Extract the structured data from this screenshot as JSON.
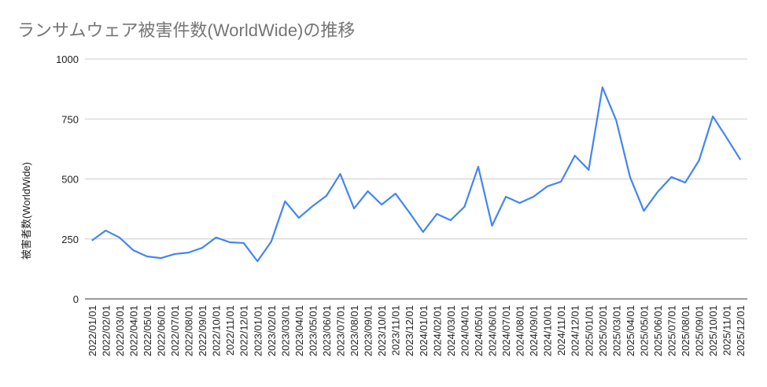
{
  "chart_data": {
    "type": "line",
    "title": "ランサムウェア被害件数(WorldWide)の推移",
    "y_label": "被害者数(WorldWide)",
    "categories": [
      "2022/01/01",
      "2022/02/01",
      "2022/03/01",
      "2022/04/01",
      "2022/05/01",
      "2022/06/01",
      "2022/07/01",
      "2022/08/01",
      "2022/09/01",
      "2022/10/01",
      "2022/11/01",
      "2022/12/01",
      "2023/01/01",
      "2023/02/01",
      "2023/03/01",
      "2023/04/01",
      "2023/05/01",
      "2023/06/01",
      "2023/07/01",
      "2023/08/01",
      "2023/09/01",
      "2023/10/01",
      "2023/11/01",
      "2023/12/01",
      "2024/01/01",
      "2024/02/01",
      "2024/03/01",
      "2024/04/01",
      "2024/05/01",
      "2024/06/01",
      "2024/07/01",
      "2024/08/01",
      "2024/09/01",
      "2024/10/01",
      "2024/11/01",
      "2024/12/01",
      "2025/01/01",
      "2025/02/01",
      "2025/03/01",
      "2025/04/01",
      "2025/05/01",
      "2025/06/01",
      "2025/07/01",
      "2025/08/01",
      "2025/09/01",
      "2025/10/01",
      "2025/11/01",
      "2025/12/01"
    ],
    "series": [
      {
        "name": "被害者数(WorldWide)",
        "color": "#4285f4",
        "values": [
          243,
          285,
          256,
          203,
          177,
          170,
          187,
          193,
          213,
          256,
          236,
          233,
          157,
          239,
          407,
          338,
          387,
          430,
          521,
          377,
          449,
          393,
          439,
          361,
          279,
          354,
          328,
          384,
          551,
          305,
          426,
          400,
          426,
          469,
          489,
          597,
          538,
          882,
          744,
          508,
          367,
          446,
          508,
          485,
          577,
          761,
          672,
          580
        ]
      }
    ],
    "ylim": [
      0,
      1000
    ],
    "yticks": [
      0,
      250,
      500,
      750,
      1000
    ],
    "grid": true
  }
}
